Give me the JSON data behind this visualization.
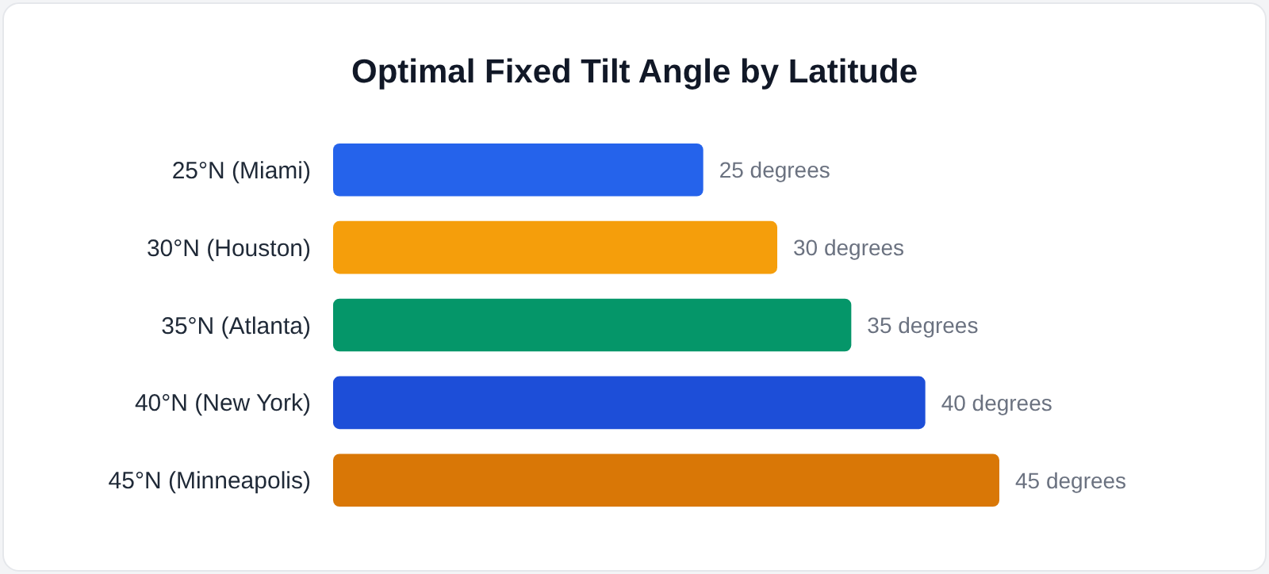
{
  "chart_data": {
    "type": "bar",
    "orientation": "horizontal",
    "title": "Optimal Fixed Tilt Angle by Latitude",
    "categories": [
      "25°N (Miami)",
      "30°N (Houston)",
      "35°N (Atlanta)",
      "40°N (New York)",
      "45°N (Minneapolis)"
    ],
    "values": [
      25,
      30,
      35,
      40,
      45
    ],
    "colors": [
      "#2563eb",
      "#f59e0b",
      "#059669",
      "#1d4ed8",
      "#d97706"
    ],
    "value_labels": [
      "25 degrees",
      "30 degrees",
      "35 degrees",
      "40 degrees",
      "45 degrees"
    ],
    "xlim": [
      0,
      45
    ]
  }
}
